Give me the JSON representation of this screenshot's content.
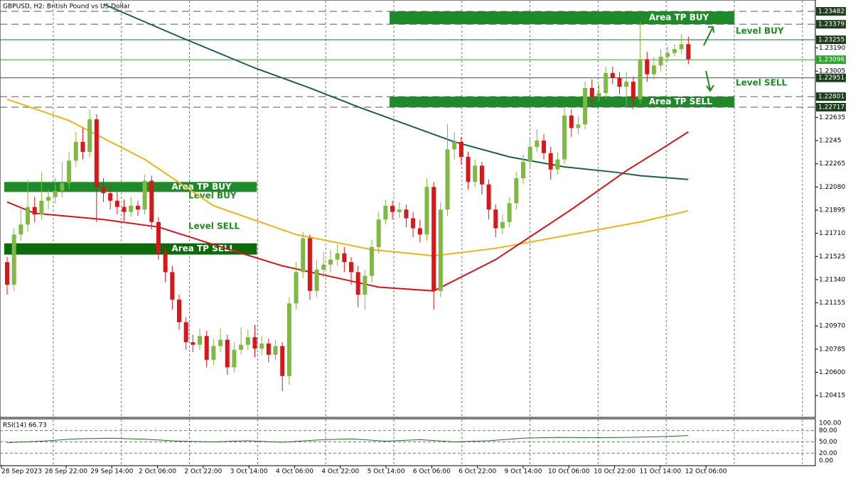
{
  "chart_data": {
    "type": "candlestick",
    "title": "GBPUSD, H2:  British Pound vs US Dollar",
    "up_color": "#7fb842",
    "down_color": "#d9161a",
    "ylim": [
      1.2024,
      1.2355
    ],
    "yticks": [
      {
        "value": 1.2319,
        "label": "1.23190"
      },
      1.23005,
      1.22635,
      1.2245,
      1.22265,
      {
        "value": 1.2208,
        "label": "1.22080"
      },
      1.21895,
      {
        "value": 1.2171,
        "label": "1.21710"
      },
      1.21525,
      {
        "value": 1.2134,
        "label": "1.21340"
      },
      1.21155,
      {
        "value": 1.2097,
        "label": "1.20970"
      },
      1.20785,
      {
        "value": 1.206,
        "label": "1.20600"
      },
      1.20415
    ],
    "x_labels": [
      "28 Sep 2023",
      "28 Sep 22:00",
      "29 Sep 14:00",
      "2 Oct 06:00",
      "2 Oct 22:00",
      "3 Oct 14:00",
      "4 Oct 06:00",
      "4 Oct 22:00",
      "5 Oct 14:00",
      "6 Oct 06:00",
      "6 Oct 22:00",
      "9 Oct 14:00",
      "10 Oct 06:00",
      "10 Oct 22:00",
      "11 Oct 14:00",
      "12 Oct 06:00"
    ],
    "candles": [
      [
        1.2148,
        1.2152,
        1.2122,
        1.213
      ],
      [
        1.213,
        1.2175,
        1.2125,
        1.217
      ],
      [
        1.217,
        1.219,
        1.2165,
        1.2178
      ],
      [
        1.2178,
        1.2214,
        1.2172,
        1.2192
      ],
      [
        1.2192,
        1.22,
        1.218,
        1.2186
      ],
      [
        1.2186,
        1.222,
        1.2182,
        1.2197
      ],
      [
        1.2197,
        1.2206,
        1.219,
        1.22
      ],
      [
        1.22,
        1.2215,
        1.2195,
        1.2205
      ],
      [
        1.2205,
        1.2228,
        1.22,
        1.2211
      ],
      [
        1.2211,
        1.2236,
        1.2206,
        1.2229
      ],
      [
        1.2229,
        1.2252,
        1.2224,
        1.2244
      ],
      [
        1.2244,
        1.2255,
        1.223,
        1.2236
      ],
      [
        1.2236,
        1.227,
        1.2232,
        1.2262
      ],
      [
        1.2262,
        1.2266,
        1.218,
        1.2208
      ],
      [
        1.2208,
        1.2215,
        1.2196,
        1.2203
      ],
      [
        1.2203,
        1.221,
        1.219,
        1.2197
      ],
      [
        1.2197,
        1.2204,
        1.2186,
        1.2192
      ],
      [
        1.2192,
        1.2198,
        1.2181,
        1.2188
      ],
      [
        1.2188,
        1.22,
        1.2184,
        1.2193
      ],
      [
        1.2193,
        1.2197,
        1.2185,
        1.219
      ],
      [
        1.219,
        1.2218,
        1.2186,
        1.2213
      ],
      [
        1.2213,
        1.2217,
        1.2174,
        1.218
      ],
      [
        1.218,
        1.2184,
        1.215,
        1.2155
      ],
      [
        1.2155,
        1.216,
        1.2132,
        1.214
      ],
      [
        1.214,
        1.2145,
        1.211,
        1.2118
      ],
      [
        1.2118,
        1.2122,
        1.2094,
        1.21
      ],
      [
        1.21,
        1.2104,
        1.2078,
        1.2084
      ],
      [
        1.2084,
        1.209,
        1.2076,
        1.2082
      ],
      [
        1.2082,
        1.2095,
        1.2078,
        1.2089
      ],
      [
        1.2089,
        1.2093,
        1.2064,
        1.207
      ],
      [
        1.207,
        1.2087,
        1.2066,
        1.2081
      ],
      [
        1.2081,
        1.2095,
        1.2076,
        1.2086
      ],
      [
        1.2086,
        1.209,
        1.2058,
        1.2064
      ],
      [
        1.2064,
        1.2084,
        1.206,
        1.2078
      ],
      [
        1.2078,
        1.2096,
        1.2074,
        1.2082
      ],
      [
        1.2082,
        1.2094,
        1.2078,
        1.2088
      ],
      [
        1.2088,
        1.2098,
        1.2072,
        1.2079
      ],
      [
        1.2079,
        1.2089,
        1.2074,
        1.2083
      ],
      [
        1.2083,
        1.2087,
        1.2068,
        1.2074
      ],
      [
        1.2074,
        1.2086,
        1.207,
        1.2081
      ],
      [
        1.2081,
        1.2084,
        1.2045,
        1.2057
      ],
      [
        1.2057,
        1.212,
        1.205,
        1.2115
      ],
      [
        1.2115,
        1.2148,
        1.211,
        1.214
      ],
      [
        1.214,
        1.2172,
        1.2135,
        1.2167
      ],
      [
        1.2167,
        1.217,
        1.2118,
        1.2125
      ],
      [
        1.2125,
        1.215,
        1.212,
        1.2142
      ],
      [
        1.2142,
        1.2156,
        1.2136,
        1.2146
      ],
      [
        1.2146,
        1.2158,
        1.214,
        1.215
      ],
      [
        1.215,
        1.2162,
        1.2145,
        1.2155
      ],
      [
        1.2155,
        1.216,
        1.214,
        1.2148
      ],
      [
        1.2148,
        1.2152,
        1.213,
        1.214
      ],
      [
        1.214,
        1.2145,
        1.2112,
        1.2122
      ],
      [
        1.2122,
        1.2142,
        1.211,
        1.2137
      ],
      [
        1.2137,
        1.2166,
        1.2132,
        1.216
      ],
      [
        1.216,
        1.2188,
        1.2155,
        1.2182
      ],
      [
        1.2182,
        1.2198,
        1.2178,
        1.2193
      ],
      [
        1.2193,
        1.2197,
        1.2182,
        1.2188
      ],
      [
        1.2188,
        1.2196,
        1.2183,
        1.219
      ],
      [
        1.219,
        1.2194,
        1.2176,
        1.2183
      ],
      [
        1.2183,
        1.2188,
        1.2168,
        1.2175
      ],
      [
        1.2175,
        1.2182,
        1.2164,
        1.217
      ],
      [
        1.217,
        1.2215,
        1.2165,
        1.2208
      ],
      [
        1.2208,
        1.2212,
        1.211,
        1.2125
      ],
      [
        1.2125,
        1.2196,
        1.212,
        1.219
      ],
      [
        1.219,
        1.2258,
        1.2185,
        1.2238
      ],
      [
        1.2238,
        1.2252,
        1.223,
        1.2244
      ],
      [
        1.2244,
        1.2248,
        1.2226,
        1.2232
      ],
      [
        1.2232,
        1.2236,
        1.2206,
        1.2212
      ],
      [
        1.2212,
        1.223,
        1.2208,
        1.2225
      ],
      [
        1.2225,
        1.2228,
        1.2202,
        1.221
      ],
      [
        1.221,
        1.2214,
        1.2182,
        1.219
      ],
      [
        1.219,
        1.2194,
        1.2168,
        1.2175
      ],
      [
        1.2175,
        1.2186,
        1.217,
        1.218
      ],
      [
        1.218,
        1.22,
        1.2176,
        1.2195
      ],
      [
        1.2195,
        1.222,
        1.219,
        1.2215
      ],
      [
        1.2215,
        1.2234,
        1.221,
        1.2228
      ],
      [
        1.2228,
        1.2246,
        1.2224,
        1.224
      ],
      [
        1.224,
        1.2254,
        1.2236,
        1.2245
      ],
      [
        1.2245,
        1.225,
        1.223,
        1.2235
      ],
      [
        1.2235,
        1.224,
        1.2214,
        1.2222
      ],
      [
        1.2222,
        1.2236,
        1.2218,
        1.223
      ],
      [
        1.223,
        1.2272,
        1.2226,
        1.2265
      ],
      [
        1.2265,
        1.227,
        1.2248,
        1.2255
      ],
      [
        1.2255,
        1.2264,
        1.225,
        1.2258
      ],
      [
        1.2258,
        1.2292,
        1.2254,
        1.2287
      ],
      [
        1.2287,
        1.2294,
        1.2274,
        1.228
      ],
      [
        1.228,
        1.229,
        1.2276,
        1.2283
      ],
      [
        1.2283,
        1.2304,
        1.2278,
        1.2299
      ],
      [
        1.2299,
        1.2304,
        1.229,
        1.2295
      ],
      [
        1.2295,
        1.23,
        1.2282,
        1.2288
      ],
      [
        1.2288,
        1.23,
        1.2272,
        1.2292
      ],
      [
        1.2292,
        1.2296,
        1.227,
        1.2278
      ],
      [
        1.2278,
        1.234,
        1.2274,
        1.231
      ],
      [
        1.231,
        1.2316,
        1.2292,
        1.2298
      ],
      [
        1.2298,
        1.2312,
        1.2294,
        1.2305
      ],
      [
        1.2305,
        1.2318,
        1.23,
        1.2312
      ],
      [
        1.2312,
        1.232,
        1.2308,
        1.2315
      ],
      [
        1.2315,
        1.2322,
        1.2312,
        1.2318
      ],
      [
        1.2318,
        1.233,
        1.2314,
        1.2322
      ],
      [
        1.2322,
        1.2328,
        1.2306,
        1.231
      ]
    ],
    "moving_averages": [
      {
        "color": "#1b5e56",
        "x": [
          14,
          25,
          36,
          44,
          51,
          58,
          65,
          73,
          81,
          88,
          92,
          99
        ],
        "values": [
          1.2354,
          1.2328,
          1.2303,
          1.2287,
          1.2272,
          1.2258,
          1.2244,
          1.2232,
          1.2224,
          1.222,
          1.2217,
          1.2214
        ]
      },
      {
        "color": "#f0b21c",
        "x": [
          0,
          9,
          20,
          30,
          42,
          53,
          62,
          71,
          82,
          92,
          99
        ],
        "values": [
          1.2278,
          1.2261,
          1.223,
          1.2193,
          1.217,
          1.2158,
          1.2153,
          1.2159,
          1.217,
          1.218,
          1.2189
        ]
      },
      {
        "color": "#d0181c",
        "x": [
          0,
          4,
          14,
          22,
          30,
          40,
          54,
          62,
          71,
          82,
          90,
          95,
          99
        ],
        "values": [
          1.2196,
          1.2187,
          1.2182,
          1.2176,
          1.2162,
          1.2145,
          1.2128,
          1.2125,
          1.215,
          1.219,
          1.2221,
          1.2238,
          1.2252
        ]
      }
    ],
    "levels": [
      {
        "value": 1.23482,
        "style": "dashed",
        "color": "#555555"
      },
      {
        "value": 1.23379,
        "style": "dashed",
        "color": "#555555"
      },
      {
        "value": 1.23255,
        "style": "solid",
        "color": "#1e6b1e"
      },
      {
        "value": 1.23096,
        "style": "solid",
        "color": "#2ea62e"
      },
      {
        "value": 1.22951,
        "style": "solid",
        "color": "#1e6b1e"
      },
      {
        "value": 1.22801,
        "style": "dashed",
        "color": "#555555"
      },
      {
        "value": 1.22717,
        "style": "dashed",
        "color": "#555555"
      }
    ],
    "zones": [
      {
        "label": "Area TP BUY",
        "top": 1.23482,
        "bottom": 1.23379,
        "x": [
          56,
          106
        ],
        "color": "#1f8a2a"
      },
      {
        "label": "Area TP SELL",
        "top": 1.22801,
        "bottom": 1.22717,
        "x": [
          56,
          106
        ],
        "color": "#1f8a2a"
      },
      {
        "label": "Area TP BUY",
        "top": 1.2212,
        "bottom": 1.2204,
        "x": [
          0,
          36.3
        ],
        "color": "#1f8a2a"
      },
      {
        "label": "Area TP SELL",
        "top": 1.2163,
        "bottom": 1.2154,
        "x": [
          0,
          36.3
        ],
        "color": "#0b6b0b"
      }
    ],
    "annotations": [
      "Level BUY",
      "Level SELL",
      "Level BUY",
      "Level SELL"
    ],
    "rsi": {
      "label": "RSI(14) 66.73",
      "ylim": [
        0,
        100
      ],
      "yticks": [
        {
          "value": 100,
          "label": "100.00"
        },
        {
          "value": 80,
          "label": "80.00"
        },
        {
          "value": 50,
          "label": "50.00"
        },
        {
          "value": 20,
          "label": "20.00"
        },
        {
          "value": 0,
          "label": "0.00"
        }
      ],
      "x": [
        0,
        5,
        10,
        15,
        20,
        25,
        30,
        35,
        40,
        45,
        50,
        55,
        60,
        65,
        70,
        75,
        80,
        85,
        90,
        95,
        99
      ],
      "values": [
        48,
        52,
        58,
        60,
        57,
        52,
        50,
        53,
        49,
        55,
        58,
        52,
        56,
        50,
        53,
        60,
        62,
        61,
        62,
        64,
        66.73
      ],
      "color": "#1e6b1e"
    }
  }
}
